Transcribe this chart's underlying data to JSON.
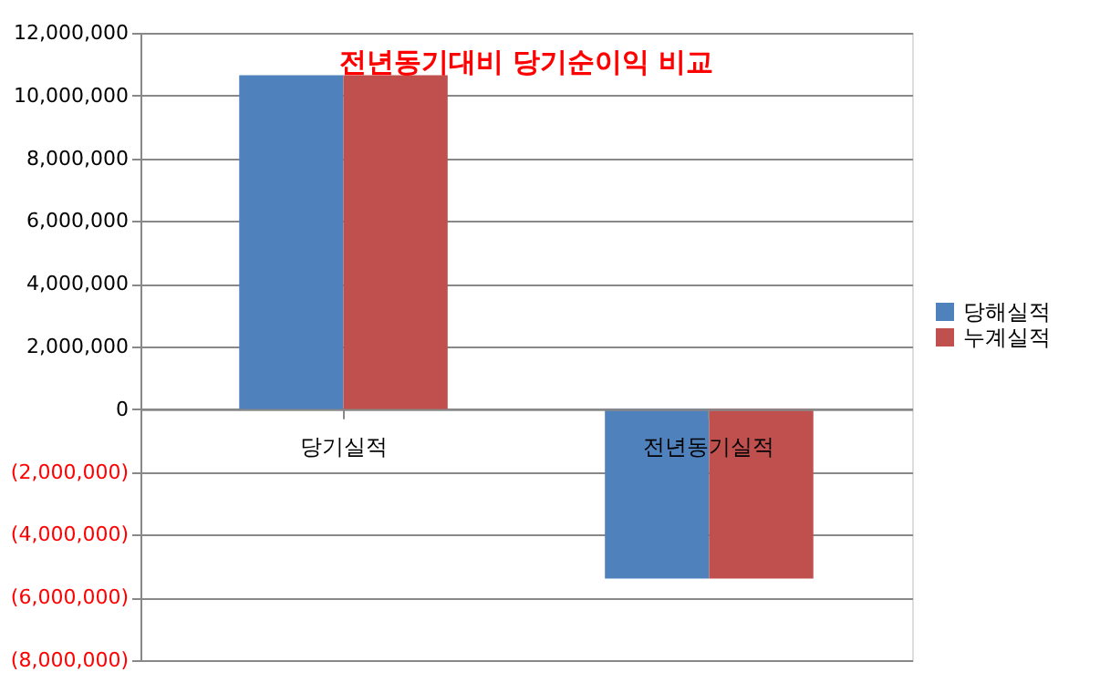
{
  "chart_data": {
    "type": "bar",
    "title": "전년동기대비 당기순이익 비교",
    "categories": [
      "당기실적",
      "전년동기실적"
    ],
    "series": [
      {
        "name": "당해실적",
        "color": "#4f81bd",
        "values": [
          10650000,
          -5400000
        ]
      },
      {
        "name": "누계실적",
        "color": "#c0504d",
        "values": [
          10650000,
          -5400000
        ]
      }
    ],
    "ylim": [
      -8000000,
      12000000
    ],
    "yticks": [
      {
        "value": -8000000,
        "label": "(8,000,000)"
      },
      {
        "value": -6000000,
        "label": "(6,000,000)"
      },
      {
        "value": -4000000,
        "label": "(4,000,000)"
      },
      {
        "value": -2000000,
        "label": "(2,000,000)"
      },
      0,
      {
        "value": 2000000,
        "label": "2,000,000"
      },
      {
        "value": 4000000,
        "label": "4,000,000"
      },
      {
        "value": 6000000,
        "label": "6,000,000"
      },
      {
        "value": 8000000,
        "label": "8,000,000"
      },
      {
        "value": 10000000,
        "label": "10,000,000"
      },
      {
        "value": 12000000,
        "label": "12,000,000"
      }
    ],
    "grid": "y",
    "legend": "right"
  }
}
